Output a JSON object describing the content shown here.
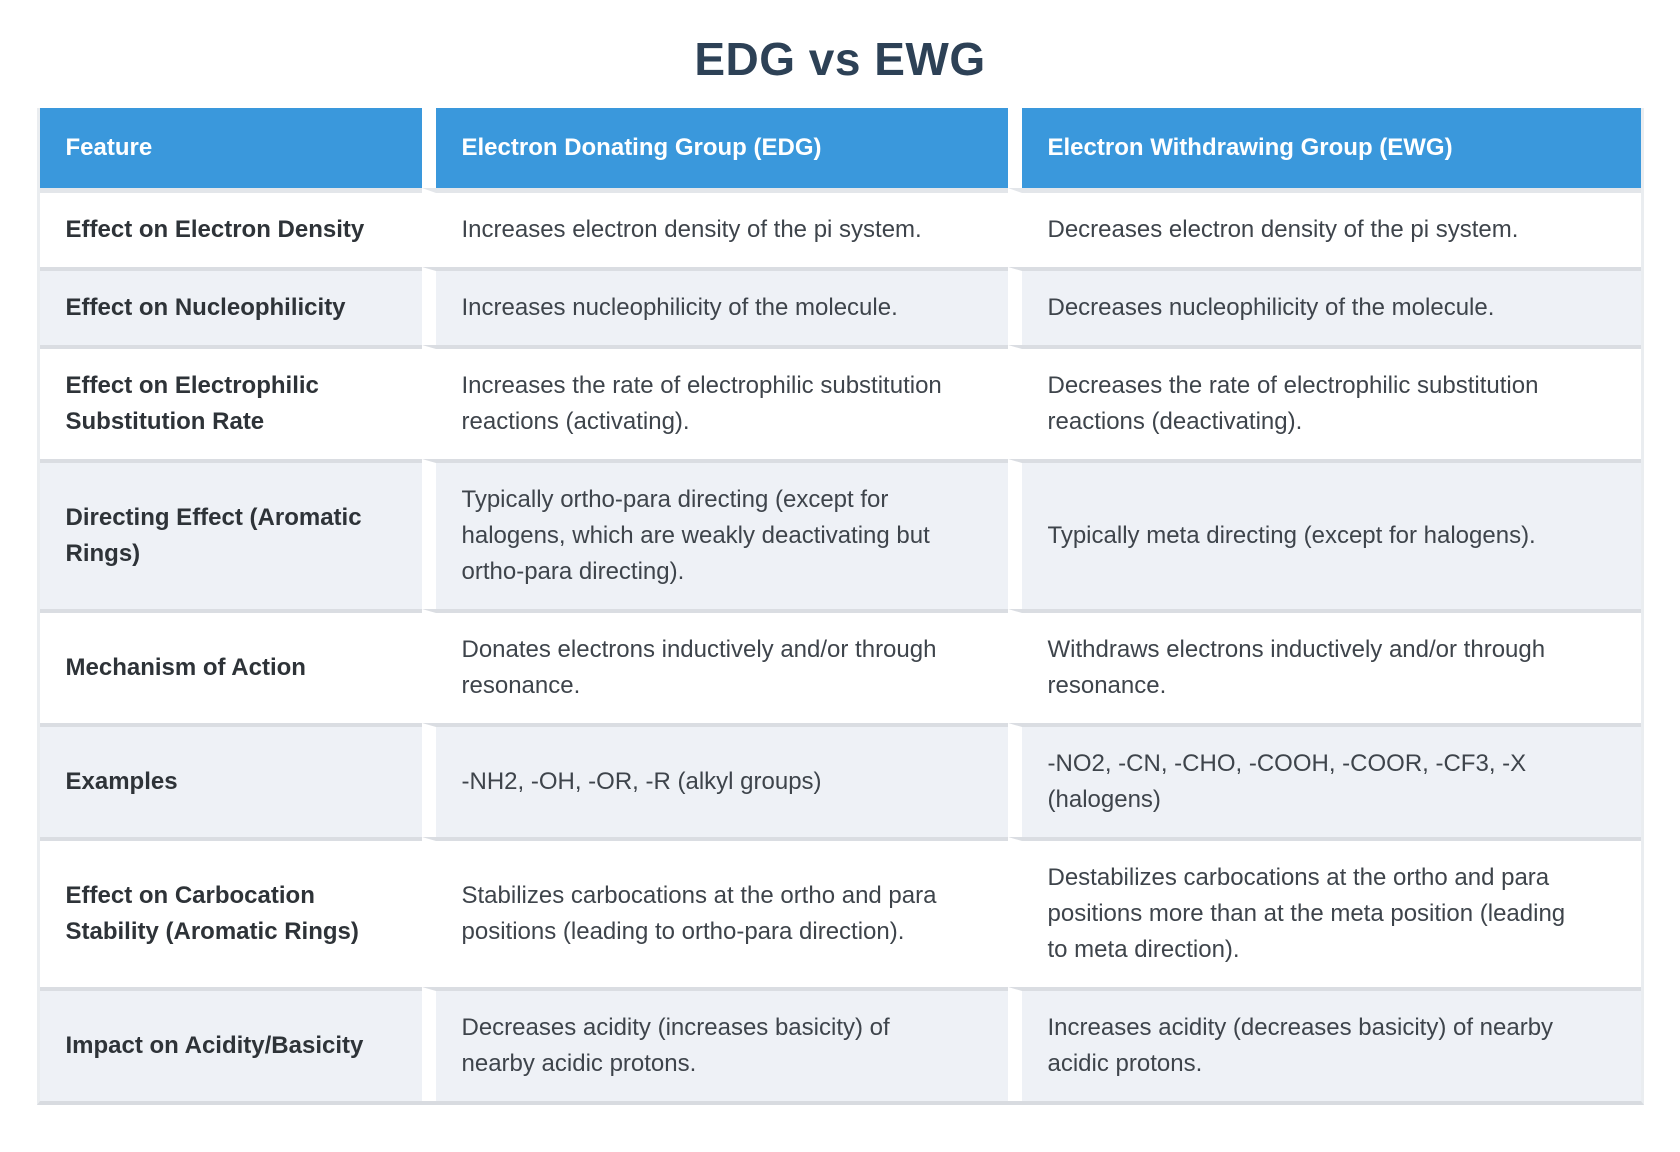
{
  "page": {
    "title": "EDG vs EWG"
  },
  "colors": {
    "header_bg": "#3a98dc",
    "header_text": "#ffffff",
    "row_alt_bg": "#eef1f6",
    "row_plain_bg": "#ffffff",
    "row_border": "#dadde2",
    "title_text": "#2d4156",
    "feature_text": "#2e3338",
    "body_text": "#3e444b"
  },
  "table": {
    "headers": [
      "Feature",
      "Electron Donating Group (EDG)",
      "Electron Withdrawing Group (EWG)"
    ],
    "rows": [
      {
        "feature": "Effect on Electron Density",
        "edg": "Increases electron density of the pi system.",
        "ewg": "Decreases electron density of the pi system."
      },
      {
        "feature": "Effect on Nucleophilicity",
        "edg": "Increases nucleophilicity of the molecule.",
        "ewg": "Decreases nucleophilicity of the molecule."
      },
      {
        "feature": "Effect on Electrophilic\nSubstitution Rate",
        "edg": "Increases the rate of electrophilic substitution\nreactions (activating).",
        "ewg": "Decreases the rate of electrophilic substitution\nreactions (deactivating)."
      },
      {
        "feature": "Directing Effect (Aromatic\nRings)",
        "edg": "Typically ortho-para directing (except for\nhalogens, which are weakly deactivating but\northo-para directing).",
        "ewg": "Typically meta directing (except for halogens)."
      },
      {
        "feature": "Mechanism of Action",
        "edg": "Donates electrons inductively and/or through\nresonance.",
        "ewg": "Withdraws electrons inductively and/or through\nresonance."
      },
      {
        "feature": "Examples",
        "edg": "-NH2, -OH, -OR, -R (alkyl groups)",
        "ewg": "-NO2, -CN, -CHO, -COOH, -COOR, -CF3, -X\n(halogens)"
      },
      {
        "feature": "Effect on Carbocation\nStability (Aromatic Rings)",
        "edg": "Stabilizes carbocations at the ortho and para\npositions (leading to ortho-para direction).",
        "ewg": "Destabilizes carbocations at the ortho and para\npositions more than at the meta position (leading\nto meta direction)."
      },
      {
        "feature": "Impact on Acidity/Basicity",
        "edg": "Decreases acidity (increases basicity) of\nnearby acidic protons.",
        "ewg": "Increases acidity (decreases basicity) of nearby\nacidic protons."
      }
    ]
  }
}
